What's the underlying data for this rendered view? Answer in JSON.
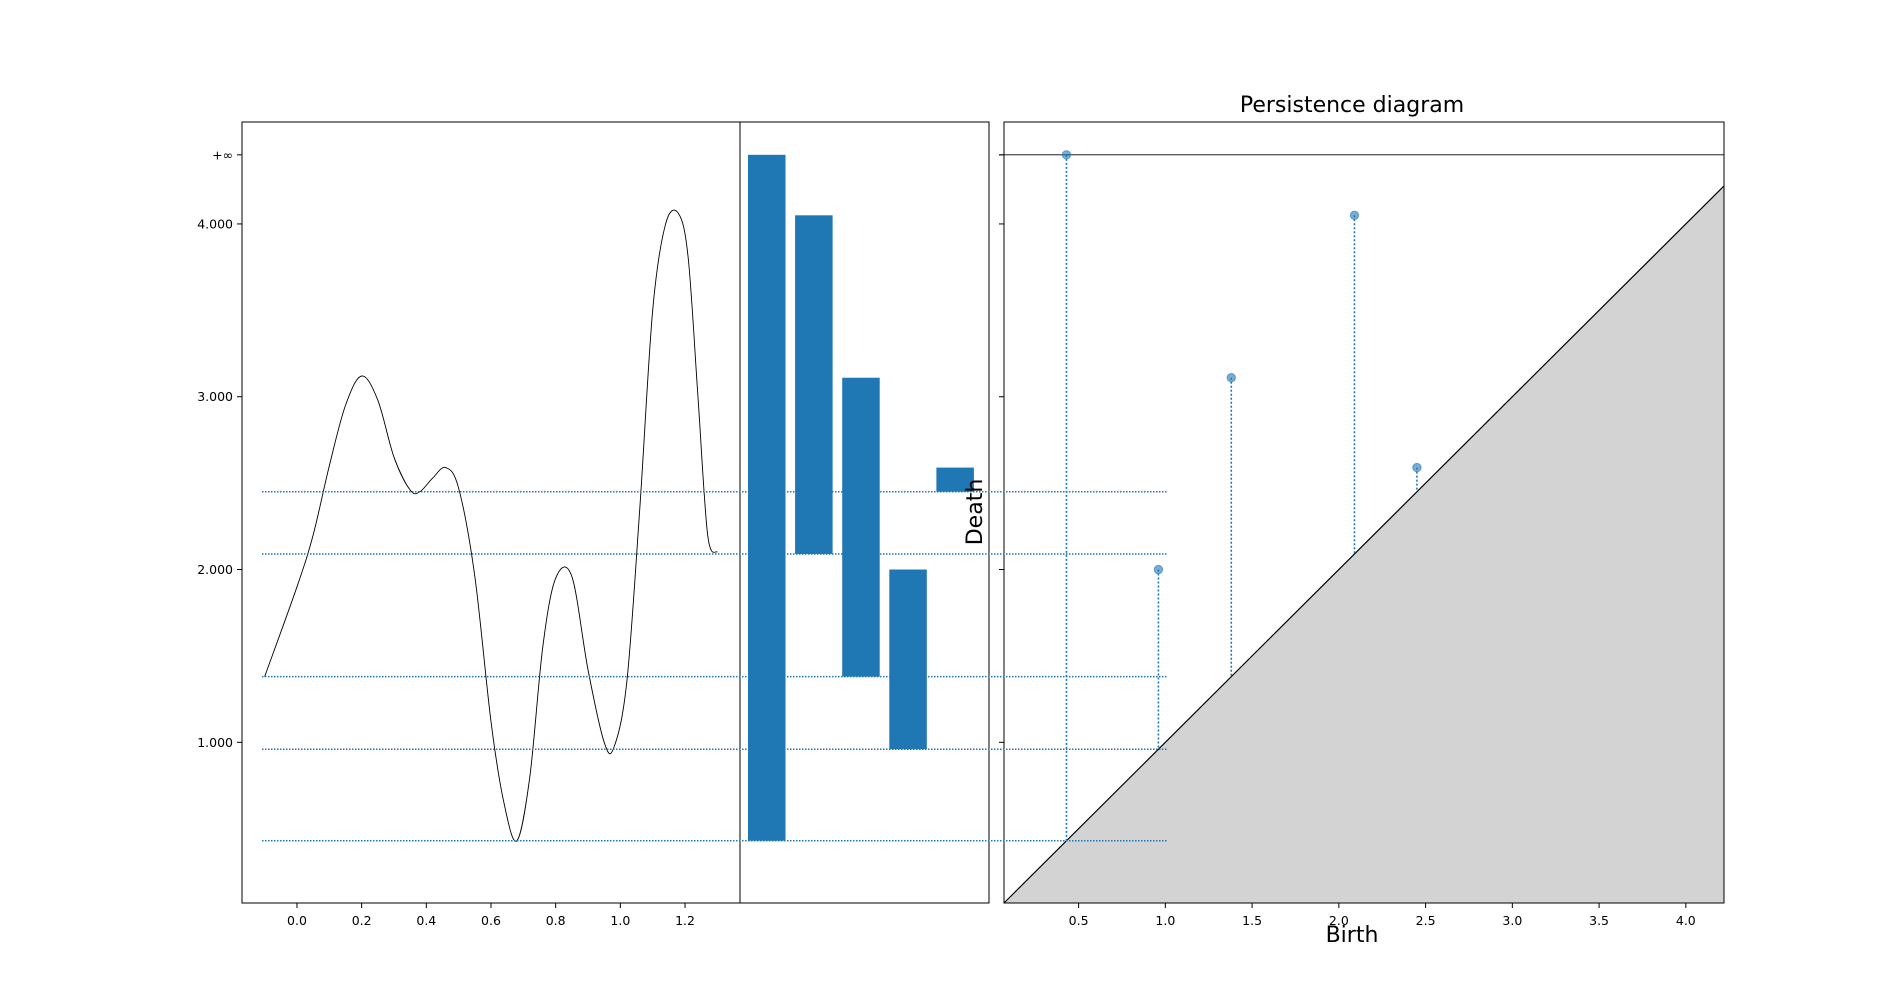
{
  "chart_data": [
    {
      "type": "line",
      "description": "Function plot with horizontal dotted level lines",
      "x": [
        -0.1,
        0.0,
        0.05,
        0.1,
        0.15,
        0.2,
        0.25,
        0.3,
        0.35,
        0.38,
        0.42,
        0.46,
        0.5,
        0.55,
        0.6,
        0.64,
        0.68,
        0.72,
        0.76,
        0.8,
        0.85,
        0.9,
        0.95,
        0.98,
        1.02,
        1.06,
        1.1,
        1.14,
        1.18,
        1.21,
        1.24,
        1.27,
        1.3
      ],
      "y": [
        1.38,
        1.9,
        2.2,
        2.6,
        2.95,
        3.12,
        2.98,
        2.65,
        2.46,
        2.45,
        2.53,
        2.59,
        2.47,
        1.96,
        1.12,
        0.65,
        0.43,
        0.8,
        1.55,
        1.95,
        1.96,
        1.42,
        1.0,
        0.97,
        1.35,
        2.35,
        3.5,
        4.0,
        4.06,
        3.8,
        3.0,
        2.2,
        2.1
      ],
      "xticks": [
        "0.0",
        "0.2",
        "0.4",
        "0.6",
        "0.8",
        "1.0",
        "1.2"
      ],
      "xtick_values": [
        0.0,
        0.2,
        0.4,
        0.6,
        0.8,
        1.0,
        1.2
      ],
      "yticks": [
        "1.000",
        "2.000",
        "3.000",
        "4.000",
        "+∞"
      ],
      "ytick_values": [
        1.0,
        2.0,
        3.0,
        4.0,
        4.4
      ],
      "xlim": [
        -0.17,
        1.37
      ],
      "ylim": [
        0.07,
        4.59
      ],
      "levels": [
        0.43,
        0.96,
        1.38,
        2.09,
        2.45
      ],
      "line_color": "#000000",
      "level_color": "#1f77b4"
    },
    {
      "type": "bar",
      "description": "Barcode",
      "bars": [
        {
          "birth": 0.43,
          "death": 4.4
        },
        {
          "birth": 2.09,
          "death": 4.05
        },
        {
          "birth": 1.38,
          "death": 3.11
        },
        {
          "birth": 0.96,
          "death": 2.0
        },
        {
          "birth": 2.45,
          "death": 2.59
        }
      ],
      "bar_color": "#1f77b4",
      "ylim": [
        0.07,
        4.59
      ]
    },
    {
      "type": "scatter",
      "title": "Persistence diagram",
      "xlabel": "Birth",
      "ylabel": "Death",
      "points": [
        {
          "birth": 0.43,
          "death": 4.4
        },
        {
          "birth": 0.96,
          "death": 2.0
        },
        {
          "birth": 1.38,
          "death": 3.11
        },
        {
          "birth": 2.09,
          "death": 4.05
        },
        {
          "birth": 2.45,
          "death": 2.59
        }
      ],
      "infinity_level": 4.4,
      "xticks": [
        "0.5",
        "1.0",
        "1.5",
        "2.0",
        "2.5",
        "3.0",
        "3.5",
        "4.0"
      ],
      "xtick_values": [
        0.5,
        1.0,
        1.5,
        2.0,
        2.5,
        3.0,
        3.5,
        4.0
      ],
      "xlim": [
        0.07,
        4.22
      ],
      "ylim": [
        0.07,
        4.59
      ],
      "point_color": "#1f77b4",
      "diagonal_fill": "#d3d3d3"
    }
  ]
}
